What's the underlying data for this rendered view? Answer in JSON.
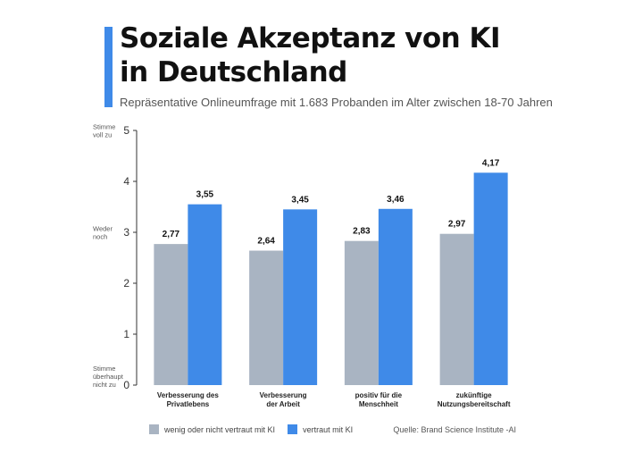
{
  "header": {
    "title_line1": "Soziale Akzeptanz von KI",
    "title_line2": "in Deutschland",
    "subtitle": "Repräsentative Onlineumfrage mit 1.683 Probanden im Alter zwischen 18-70 Jahren"
  },
  "colors": {
    "accent": "#3f8ae8",
    "series_gray": "#a9b4c2",
    "series_blue": "#3f8ae8"
  },
  "chart_data": {
    "type": "bar",
    "title": "Soziale Akzeptanz von KI in Deutschland",
    "subtitle": "Repräsentative Onlineumfrage mit 1.683 Probanden im Alter zwischen 18-70 Jahren",
    "categories": [
      [
        "Verbesserung des",
        "Privatlebens"
      ],
      [
        "Verbesserung",
        "der Arbeit"
      ],
      [
        "positiv für die",
        "Menschheit"
      ],
      [
        "zukünftige",
        "Nutzungsbereitschaft"
      ]
    ],
    "series": [
      {
        "name": "wenig oder nicht vertraut mit KI",
        "values": [
          2.77,
          2.64,
          2.83,
          2.97
        ],
        "labels": [
          "2,77",
          "2,64",
          "2,83",
          "2,97"
        ],
        "color": "#a9b4c2"
      },
      {
        "name": "vertraut mit KI",
        "values": [
          3.55,
          3.45,
          3.46,
          4.17
        ],
        "labels": [
          "3,55",
          "3,45",
          "3,46",
          "4,17"
        ],
        "color": "#3f8ae8"
      }
    ],
    "ylim": [
      0,
      5
    ],
    "yticks": [
      0,
      1,
      2,
      3,
      4,
      5
    ],
    "y_side_labels": [
      {
        "value": 5,
        "lines": [
          "Stimme",
          "voll zu"
        ]
      },
      {
        "value": 3,
        "lines": [
          "Weder",
          "noch"
        ]
      },
      {
        "value": 0,
        "lines": [
          "Stimme",
          "überhaupt",
          "nicht zu"
        ]
      }
    ],
    "grid": false,
    "legend_position": "bottom-left"
  },
  "source": "Quelle: Brand Science Institute -AI"
}
